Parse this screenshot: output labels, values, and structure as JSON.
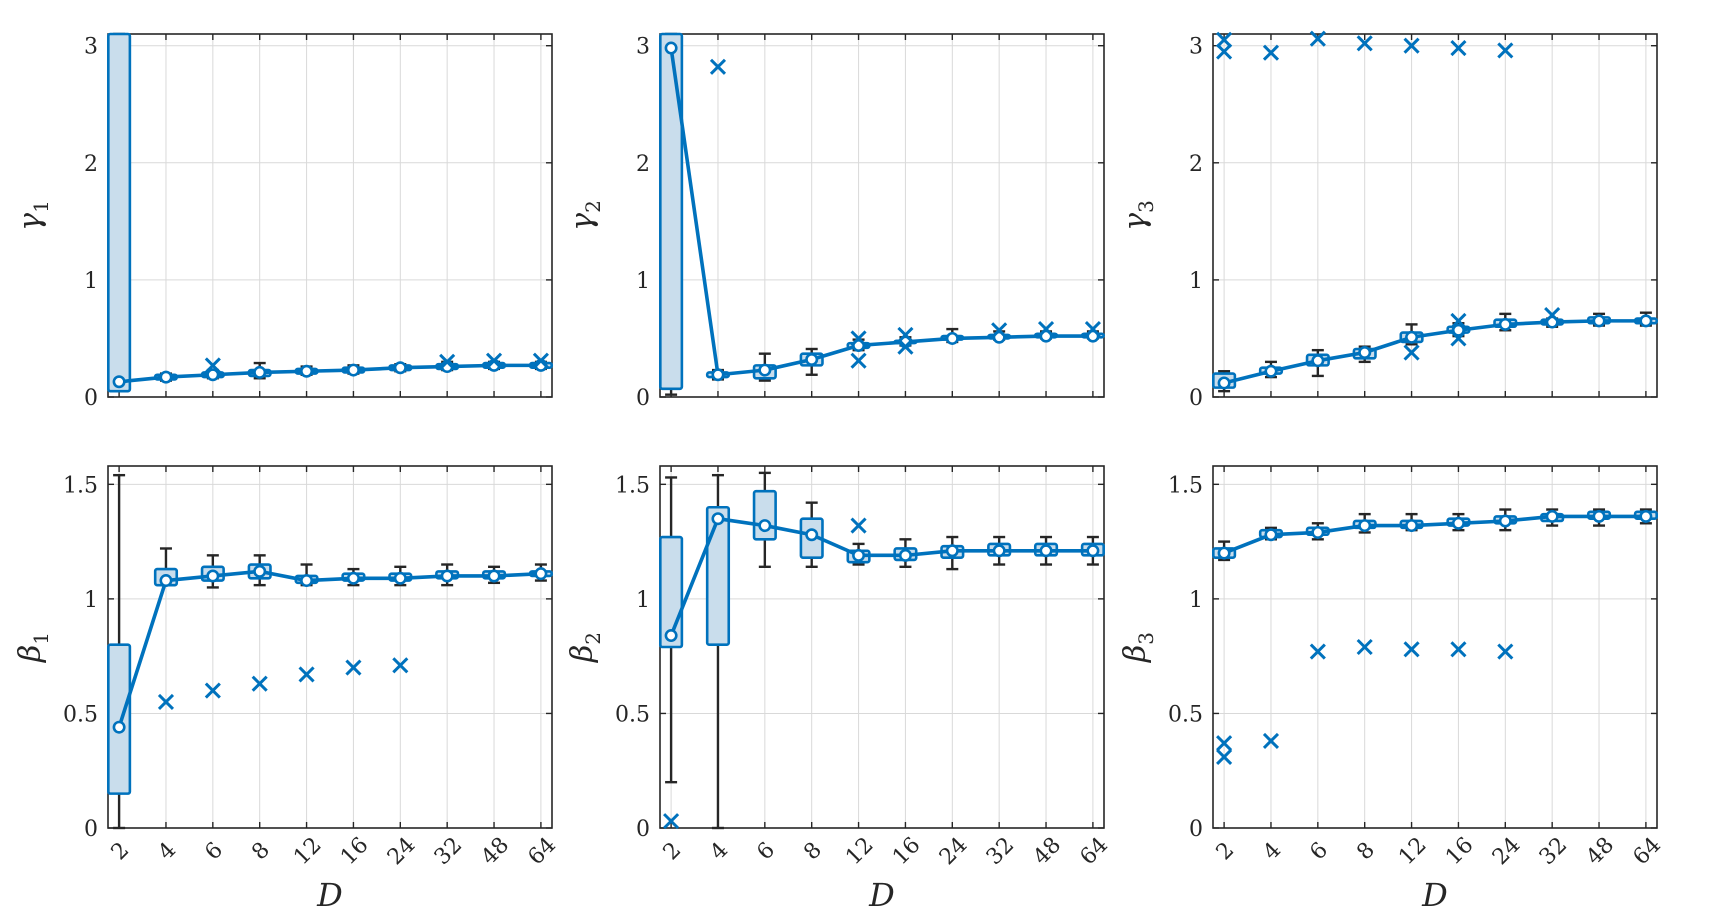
{
  "colors": {
    "series": "#0072BD",
    "box_fill": "#C9DDEC",
    "whisker": "#262626",
    "grid": "#D9D9D9",
    "axes": "#262626"
  },
  "chart_data": [
    {
      "type": "box",
      "name": "gamma_1",
      "ylabel": "γ",
      "ylabel_sub": "1",
      "xlabel": "",
      "categories": [
        "2",
        "4",
        "6",
        "8",
        "12",
        "16",
        "24",
        "32",
        "48",
        "64"
      ],
      "ylim": [
        0,
        3.1
      ],
      "yticks": [
        0,
        1,
        2,
        3
      ],
      "grid": true,
      "show_x_tick_labels": false,
      "median": [
        0.13,
        0.17,
        0.19,
        0.21,
        0.22,
        0.23,
        0.25,
        0.26,
        0.27,
        0.27
      ],
      "q1": [
        0.05,
        0.15,
        0.17,
        0.18,
        0.2,
        0.21,
        0.23,
        0.24,
        0.25,
        0.25
      ],
      "q3": [
        3.1,
        0.19,
        0.21,
        0.23,
        0.24,
        0.25,
        0.27,
        0.28,
        0.29,
        0.29
      ],
      "whisker_low": [
        0.05,
        0.14,
        0.16,
        0.16,
        0.19,
        0.2,
        0.22,
        0.23,
        0.24,
        0.24
      ],
      "whisker_high": [
        3.1,
        0.2,
        0.23,
        0.29,
        0.26,
        0.27,
        0.28,
        0.3,
        0.3,
        0.3
      ],
      "outliers": [
        [],
        [],
        [
          0.27
        ],
        [],
        [],
        [],
        [],
        [
          0.3
        ],
        [
          0.31
        ],
        [
          0.31
        ]
      ]
    },
    {
      "type": "box",
      "name": "gamma_2",
      "ylabel": "γ",
      "ylabel_sub": "2",
      "xlabel": "",
      "categories": [
        "2",
        "4",
        "6",
        "8",
        "12",
        "16",
        "24",
        "32",
        "48",
        "64"
      ],
      "ylim": [
        0,
        3.1
      ],
      "yticks": [
        0,
        1,
        2,
        3
      ],
      "grid": true,
      "show_x_tick_labels": false,
      "median": [
        2.98,
        0.19,
        0.23,
        0.32,
        0.44,
        0.47,
        0.5,
        0.51,
        0.52,
        0.52
      ],
      "q1": [
        0.07,
        0.17,
        0.16,
        0.27,
        0.42,
        0.46,
        0.49,
        0.5,
        0.51,
        0.51
      ],
      "q3": [
        3.1,
        0.21,
        0.27,
        0.37,
        0.46,
        0.48,
        0.52,
        0.53,
        0.54,
        0.54
      ],
      "whisker_low": [
        0.02,
        0.15,
        0.14,
        0.19,
        0.4,
        0.44,
        0.47,
        0.49,
        0.5,
        0.5
      ],
      "whisker_high": [
        3.1,
        0.23,
        0.37,
        0.41,
        0.49,
        0.51,
        0.58,
        0.56,
        0.56,
        0.56
      ],
      "outliers": [
        [],
        [
          2.82
        ],
        [],
        [],
        [
          0.5,
          0.31
        ],
        [
          0.53,
          0.43
        ],
        [],
        [
          0.57
        ],
        [
          0.58
        ],
        [
          0.58
        ]
      ]
    },
    {
      "type": "box",
      "name": "gamma_3",
      "ylabel": "γ",
      "ylabel_sub": "3",
      "xlabel": "",
      "categories": [
        "2",
        "4",
        "6",
        "8",
        "12",
        "16",
        "24",
        "32",
        "48",
        "64"
      ],
      "ylim": [
        0,
        3.1
      ],
      "yticks": [
        0,
        1,
        2,
        3
      ],
      "grid": true,
      "show_x_tick_labels": false,
      "median": [
        0.12,
        0.22,
        0.31,
        0.38,
        0.51,
        0.57,
        0.62,
        0.64,
        0.65,
        0.65
      ],
      "q1": [
        0.08,
        0.2,
        0.27,
        0.33,
        0.47,
        0.55,
        0.6,
        0.62,
        0.63,
        0.63
      ],
      "q3": [
        0.2,
        0.25,
        0.36,
        0.41,
        0.55,
        0.6,
        0.66,
        0.66,
        0.68,
        0.67
      ],
      "whisker_low": [
        0.05,
        0.17,
        0.18,
        0.3,
        0.45,
        0.52,
        0.57,
        0.6,
        0.61,
        0.61
      ],
      "whisker_high": [
        0.22,
        0.3,
        0.4,
        0.43,
        0.62,
        0.63,
        0.71,
        0.67,
        0.71,
        0.72
      ],
      "outliers": [
        [
          3.05,
          2.95
        ],
        [
          2.94
        ],
        [
          3.06
        ],
        [
          3.02
        ],
        [
          3.0,
          0.38
        ],
        [
          2.98,
          0.65,
          0.5
        ],
        [
          2.96
        ],
        [
          0.7
        ],
        [],
        []
      ]
    },
    {
      "type": "box",
      "name": "beta_1",
      "ylabel": "β",
      "ylabel_sub": "1",
      "xlabel": "D",
      "categories": [
        "2",
        "4",
        "6",
        "8",
        "12",
        "16",
        "24",
        "32",
        "48",
        "64"
      ],
      "ylim": [
        0,
        1.58
      ],
      "yticks": [
        0,
        0.5,
        1,
        1.5
      ],
      "grid": true,
      "show_x_tick_labels": true,
      "median": [
        0.44,
        1.08,
        1.1,
        1.12,
        1.08,
        1.09,
        1.09,
        1.1,
        1.1,
        1.11
      ],
      "q1": [
        0.15,
        1.06,
        1.08,
        1.09,
        1.07,
        1.08,
        1.08,
        1.09,
        1.09,
        1.1
      ],
      "q3": [
        0.8,
        1.13,
        1.14,
        1.15,
        1.1,
        1.11,
        1.11,
        1.12,
        1.12,
        1.12
      ],
      "whisker_low": [
        0.0,
        1.06,
        1.05,
        1.06,
        1.06,
        1.06,
        1.06,
        1.06,
        1.07,
        1.08
      ],
      "whisker_high": [
        1.54,
        1.22,
        1.19,
        1.19,
        1.15,
        1.13,
        1.14,
        1.15,
        1.14,
        1.15
      ],
      "outliers": [
        [],
        [
          0.55
        ],
        [
          0.6
        ],
        [
          0.63
        ],
        [
          0.67
        ],
        [
          0.7
        ],
        [
          0.71
        ],
        [],
        [],
        []
      ]
    },
    {
      "type": "box",
      "name": "beta_2",
      "ylabel": "β",
      "ylabel_sub": "2",
      "xlabel": "D",
      "categories": [
        "2",
        "4",
        "6",
        "8",
        "12",
        "16",
        "24",
        "32",
        "48",
        "64"
      ],
      "ylim": [
        0,
        1.58
      ],
      "yticks": [
        0,
        0.5,
        1,
        1.5
      ],
      "grid": true,
      "show_x_tick_labels": true,
      "median": [
        0.84,
        1.35,
        1.32,
        1.28,
        1.19,
        1.19,
        1.21,
        1.21,
        1.21,
        1.21
      ],
      "q1": [
        0.79,
        0.8,
        1.26,
        1.18,
        1.16,
        1.17,
        1.18,
        1.19,
        1.19,
        1.19
      ],
      "q3": [
        1.27,
        1.4,
        1.47,
        1.35,
        1.21,
        1.22,
        1.23,
        1.24,
        1.24,
        1.24
      ],
      "whisker_low": [
        0.2,
        0.0,
        1.14,
        1.14,
        1.15,
        1.14,
        1.13,
        1.15,
        1.15,
        1.15
      ],
      "whisker_high": [
        1.53,
        1.54,
        1.55,
        1.42,
        1.24,
        1.26,
        1.27,
        1.27,
        1.27,
        1.27
      ],
      "outliers": [
        [
          0.03
        ],
        [],
        [],
        [],
        [
          1.32
        ],
        [],
        [],
        [],
        [],
        []
      ]
    },
    {
      "type": "box",
      "name": "beta_3",
      "ylabel": "β",
      "ylabel_sub": "3",
      "xlabel": "D",
      "categories": [
        "2",
        "4",
        "6",
        "8",
        "12",
        "16",
        "24",
        "32",
        "48",
        "64"
      ],
      "ylim": [
        0,
        1.58
      ],
      "yticks": [
        0,
        0.5,
        1,
        1.5
      ],
      "grid": true,
      "show_x_tick_labels": true,
      "median": [
        1.2,
        1.28,
        1.29,
        1.32,
        1.32,
        1.33,
        1.34,
        1.36,
        1.36,
        1.36
      ],
      "q1": [
        1.18,
        1.27,
        1.28,
        1.31,
        1.31,
        1.32,
        1.33,
        1.34,
        1.35,
        1.35
      ],
      "q3": [
        1.22,
        1.3,
        1.31,
        1.34,
        1.34,
        1.35,
        1.36,
        1.37,
        1.38,
        1.38
      ],
      "whisker_low": [
        1.17,
        1.26,
        1.26,
        1.29,
        1.3,
        1.3,
        1.3,
        1.32,
        1.32,
        1.33
      ],
      "whisker_high": [
        1.25,
        1.31,
        1.33,
        1.37,
        1.37,
        1.37,
        1.39,
        1.39,
        1.39,
        1.39
      ],
      "outliers": [
        [
          0.37,
          0.31
        ],
        [
          0.38
        ],
        [
          0.77
        ],
        [
          0.79
        ],
        [
          0.78
        ],
        [
          0.78
        ],
        [
          0.77
        ],
        [],
        [],
        []
      ]
    }
  ]
}
